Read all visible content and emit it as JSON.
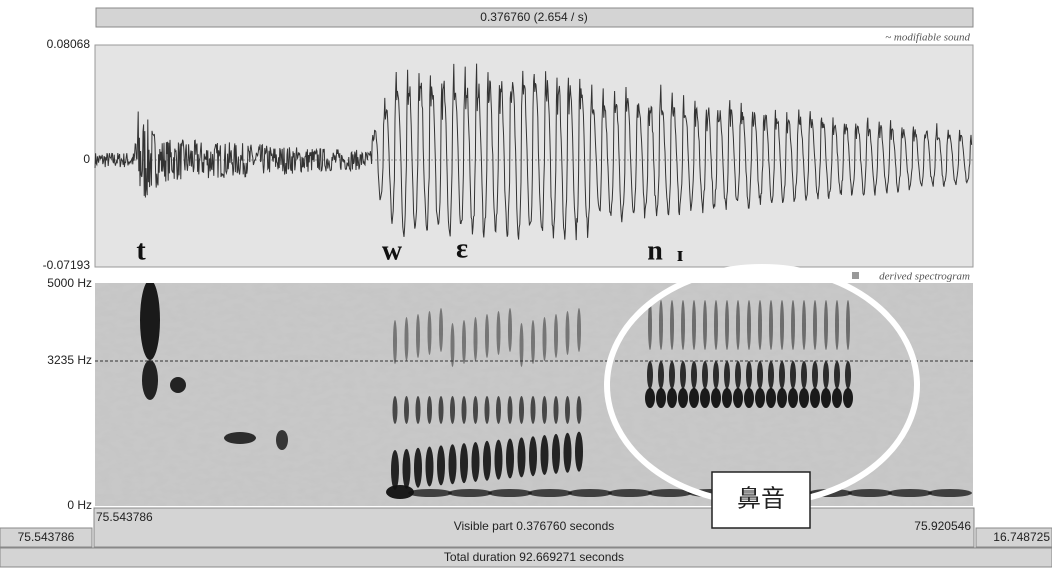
{
  "header": {
    "selection": "0.376760 (2.654 / s)"
  },
  "waveform": {
    "label": "~ modifiable sound",
    "max": "0.08068",
    "zero": "0",
    "min": "-0.07193",
    "phones": [
      "t",
      "w",
      "ɛ",
      "n",
      "ɪ"
    ]
  },
  "spectrogram": {
    "label": "derived spectrogram",
    "top": "5000 Hz",
    "cursor": "3235 Hz",
    "bottom": "0 Hz"
  },
  "footer": {
    "left_total": "75.543786",
    "start": "75.543786",
    "visible": "Visible part 0.376760 seconds",
    "end": "75.920546",
    "right_total": "16.748725",
    "total": "Total duration 92.669271 seconds"
  },
  "annotation": {
    "label": "鼻音"
  }
}
